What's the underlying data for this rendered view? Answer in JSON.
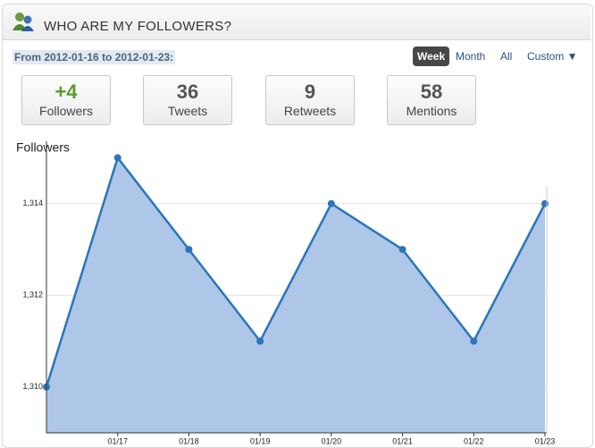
{
  "header": {
    "title": "WHO ARE MY FOLLOWERS?"
  },
  "date_range": "From 2012-01-16 to 2012-01-23:",
  "range_options": [
    "Week",
    "Month",
    "All",
    "Custom ▼"
  ],
  "stats": [
    {
      "value": "+4",
      "label": "Followers"
    },
    {
      "value": 36,
      "label": "Tweets"
    },
    {
      "value": 9,
      "label": "Retweets"
    },
    {
      "value": 58,
      "label": "Mentions"
    }
  ],
  "chart_data": {
    "type": "area",
    "y_label": "Followers",
    "categories": [
      null,
      "01/17",
      "01/18",
      "01/19",
      "01/20",
      "01/21",
      "01/22",
      "01/23"
    ],
    "values": [
      1310,
      1315,
      1313,
      1311,
      1314,
      1313,
      1311,
      1314
    ],
    "color": "#2a76b8",
    "fill": "#aec6e8",
    "ylim": [
      1309,
      1315.36
    ],
    "yticks": [
      {
        "value": 1310,
        "label": "1,310"
      },
      {
        "value": 1312,
        "label": "1,312"
      },
      {
        "value": 1314,
        "label": "1,314"
      }
    ],
    "grid": true
  }
}
